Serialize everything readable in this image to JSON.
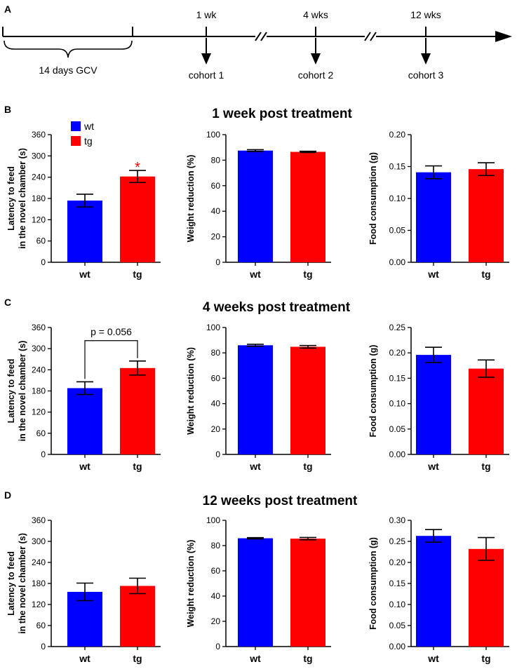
{
  "timeline": {
    "panel_label": "A",
    "gcv_label": "14 days GCV",
    "timepoints": [
      {
        "label": "1 wk",
        "cohort": "cohort 1"
      },
      {
        "label": "4 wks",
        "cohort": "cohort 2"
      },
      {
        "label": "12 wks",
        "cohort": "cohort 3"
      }
    ]
  },
  "colors": {
    "wt": "#0000ff",
    "tg": "#ff0000",
    "significance": "#ff0000"
  },
  "legend": {
    "wt": "wt",
    "tg": "tg"
  },
  "rows": [
    {
      "panel_label": "B",
      "title": "1 week post treatment"
    },
    {
      "panel_label": "C",
      "title": "4 weeks post treatment"
    },
    {
      "panel_label": "D",
      "title": "12 weeks post treatment"
    }
  ],
  "chart_data": [
    {
      "type": "bar",
      "panel": "B",
      "title": "1 week post treatment",
      "ylabel": [
        "Latency to feed",
        "in the novel chamber (s)"
      ],
      "categories": [
        "wt",
        "tg"
      ],
      "values": [
        174,
        242
      ],
      "errors": [
        18,
        17
      ],
      "ylim": [
        0,
        360
      ],
      "yticks": [
        "0",
        "60",
        "120",
        "180",
        "240",
        "300",
        "360"
      ],
      "significance": {
        "label": "*",
        "category": "tg"
      }
    },
    {
      "type": "bar",
      "panel": "B",
      "title": "1 week post treatment",
      "ylabel": [
        "Weight reduction  (%)"
      ],
      "categories": [
        "wt",
        "tg"
      ],
      "values": [
        87.5,
        86.5
      ],
      "errors": [
        0.7,
        0.5
      ],
      "ylim": [
        0,
        100
      ],
      "yticks": [
        "0",
        "20",
        "40",
        "60",
        "80",
        "100"
      ]
    },
    {
      "type": "bar",
      "panel": "B",
      "title": "1 week post treatment",
      "ylabel": [
        "Food consumption (g)"
      ],
      "categories": [
        "wt",
        "tg"
      ],
      "values": [
        0.141,
        0.146
      ],
      "errors": [
        0.01,
        0.01
      ],
      "ylim": [
        0,
        0.2
      ],
      "yticks": [
        "0.00",
        "0.05",
        "0.10",
        "0.15",
        "0.20"
      ]
    },
    {
      "type": "bar",
      "panel": "C",
      "title": "4 weeks post treatment",
      "ylabel": [
        "Latency to feed",
        "in the novel chamber (s)"
      ],
      "categories": [
        "wt",
        "tg"
      ],
      "values": [
        188,
        245
      ],
      "errors": [
        18,
        20
      ],
      "ylim": [
        0,
        360
      ],
      "yticks": [
        "0",
        "60",
        "120",
        "180",
        "240",
        "300",
        "360"
      ],
      "comparison": {
        "label": "p = 0.056",
        "from": "wt",
        "to": "tg"
      }
    },
    {
      "type": "bar",
      "panel": "C",
      "title": "4 weeks post treatment",
      "ylabel": [
        "Weight reduction  (%)"
      ],
      "categories": [
        "wt",
        "tg"
      ],
      "values": [
        86,
        84.8
      ],
      "errors": [
        0.8,
        1
      ],
      "ylim": [
        0,
        100
      ],
      "yticks": [
        "0",
        "20",
        "40",
        "60",
        "80",
        "100"
      ]
    },
    {
      "type": "bar",
      "panel": "C",
      "title": "4 weeks post treatment",
      "ylabel": [
        "Food consumption (g)"
      ],
      "categories": [
        "wt",
        "tg"
      ],
      "values": [
        0.196,
        0.169
      ],
      "errors": [
        0.015,
        0.017
      ],
      "ylim": [
        0,
        0.25
      ],
      "yticks": [
        "0.00",
        "0.05",
        "0.10",
        "0.15",
        "0.20",
        "0.25"
      ]
    },
    {
      "type": "bar",
      "panel": "D",
      "title": "12 weeks post treatment",
      "ylabel": [
        "Latency to feed",
        "in the novel chamber (s)"
      ],
      "categories": [
        "wt",
        "tg"
      ],
      "values": [
        156,
        173
      ],
      "errors": [
        25,
        22
      ],
      "ylim": [
        0,
        360
      ],
      "yticks": [
        "0",
        "60",
        "120",
        "180",
        "240",
        "300",
        "360"
      ]
    },
    {
      "type": "bar",
      "panel": "D",
      "title": "12 weeks post treatment",
      "ylabel": [
        "Weight reduction  (%)"
      ],
      "categories": [
        "wt",
        "tg"
      ],
      "values": [
        85.8,
        85.5
      ],
      "errors": [
        0.5,
        0.9
      ],
      "ylim": [
        0,
        100
      ],
      "yticks": [
        "0",
        "20",
        "40",
        "60",
        "80",
        "100"
      ]
    },
    {
      "type": "bar",
      "panel": "D",
      "title": "12 weeks post treatment",
      "ylabel": [
        "Food consumption (g)"
      ],
      "categories": [
        "wt",
        "tg"
      ],
      "values": [
        0.263,
        0.232
      ],
      "errors": [
        0.015,
        0.027
      ],
      "ylim": [
        0,
        0.3
      ],
      "yticks": [
        "0.00",
        "0.05",
        "0.10",
        "0.15",
        "0.20",
        "0.25",
        "0.30"
      ]
    }
  ]
}
